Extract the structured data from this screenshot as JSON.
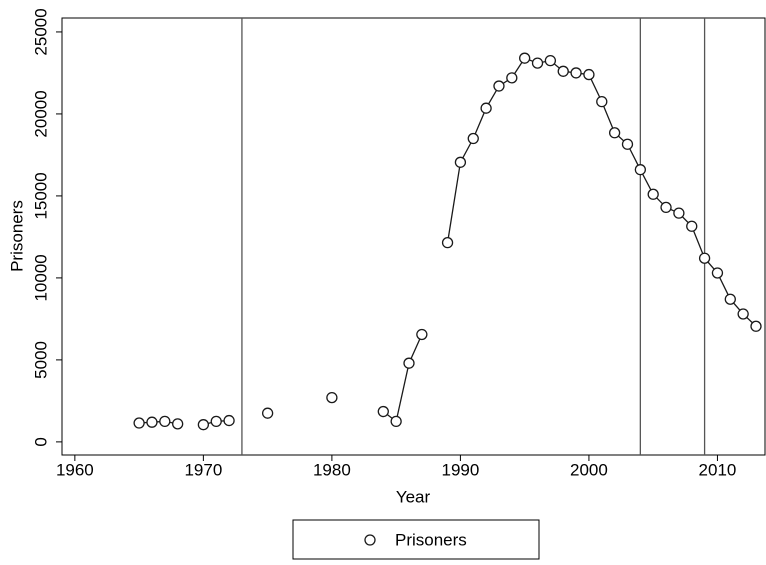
{
  "chart_data": {
    "type": "line",
    "x_label": "Year",
    "y_label": "Prisoners",
    "x": [
      1965,
      1966,
      1967,
      1968,
      1969,
      1970,
      1971,
      1972,
      1973,
      1974,
      1975,
      1976,
      1977,
      1978,
      1979,
      1980,
      1981,
      1982,
      1983,
      1984,
      1985,
      1986,
      1987,
      1988,
      1989,
      1990,
      1991,
      1992,
      1993,
      1994,
      1995,
      1996,
      1997,
      1998,
      1999,
      2000,
      2001,
      2002,
      2003,
      2004,
      2005,
      2006,
      2007,
      2008,
      2009,
      2010,
      2011,
      2012,
      2013
    ],
    "series": [
      {
        "name": "Prisoners",
        "color": "#1a1a1a",
        "marker": "circle",
        "values": [
          1150,
          1200,
          1250,
          1100,
          null,
          1050,
          1250,
          1300,
          null,
          null,
          1750,
          null,
          null,
          null,
          null,
          2700,
          null,
          null,
          null,
          1850,
          1250,
          4800,
          6550,
          null,
          12150,
          17050,
          18500,
          20350,
          21700,
          22200,
          23400,
          23100,
          23250,
          22600,
          22500,
          22400,
          20750,
          18850,
          18150,
          16600,
          15100,
          14300,
          13950,
          13150,
          11200,
          10300,
          8700,
          7800,
          7050
        ]
      }
    ],
    "xlim": [
      1959,
      2013.7
    ],
    "ylim": [
      -800,
      25850
    ],
    "xticks": [
      1960,
      1970,
      1980,
      1990,
      2000,
      2010
    ],
    "yticks": [
      0,
      5000,
      10000,
      15000,
      20000,
      25000
    ],
    "xlines": [
      1973,
      2004,
      2009
    ],
    "xline_color": "#555555",
    "grid": false,
    "legend": "bottom"
  }
}
